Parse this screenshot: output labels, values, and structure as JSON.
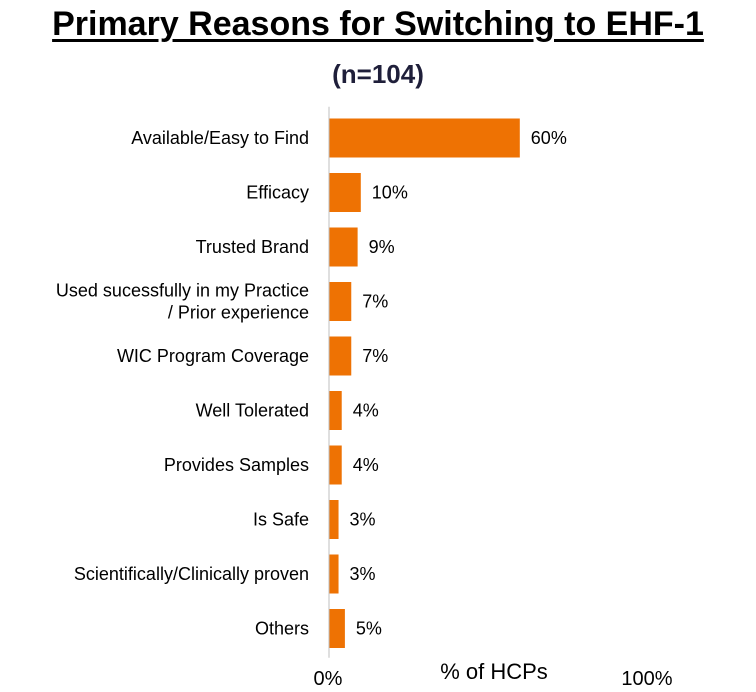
{
  "chart_data": {
    "type": "bar",
    "orientation": "horizontal",
    "title": "Primary Reasons for Switching to EHF-1",
    "subtitle": "(n=104)",
    "xlabel": "% of HCPs",
    "xlim": [
      0,
      100
    ],
    "x_tick_labels": [
      "0%",
      "100%"
    ],
    "categories": [
      [
        "Available/Easy to Find"
      ],
      [
        "Efficacy"
      ],
      [
        "Trusted Brand"
      ],
      [
        "Used sucessfully in my Practice",
        "/ Prior experience"
      ],
      [
        "WIC Program Coverage"
      ],
      [
        "Well Tolerated"
      ],
      [
        "Provides Samples"
      ],
      [
        "Is Safe"
      ],
      [
        "Scientifically/Clinically proven"
      ],
      [
        "Others"
      ]
    ],
    "values": [
      60,
      10,
      9,
      7,
      7,
      4,
      4,
      3,
      3,
      5
    ],
    "data_labels": [
      "60%",
      "10%",
      "9%",
      "7%",
      "7%",
      "4%",
      "4%",
      "3%",
      "3%",
      "5%"
    ],
    "bar_color": "#ee7203",
    "grid": false,
    "legend": "none"
  }
}
